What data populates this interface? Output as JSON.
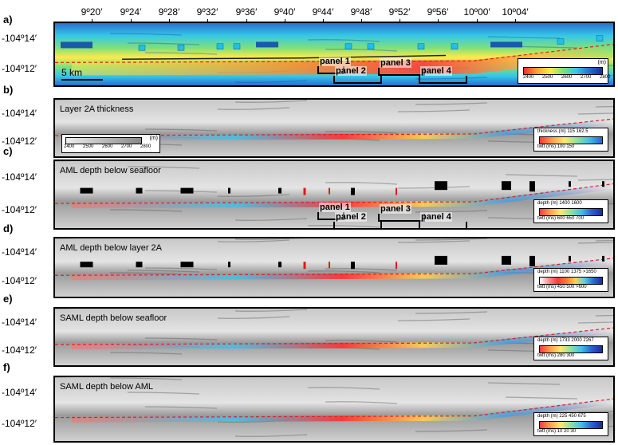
{
  "longitudes": [
    "9º20′",
    "9º24′",
    "9º28′",
    "9º32′",
    "9º36′",
    "9º40′",
    "9º44′",
    "9º48′",
    "9º52′",
    "9º56′",
    "10º00′",
    "10º04′"
  ],
  "latitudes": [
    "-104º14′",
    "-104º12′"
  ],
  "panels": [
    {
      "letter": "a)",
      "title": ""
    },
    {
      "letter": "b)",
      "title": "Layer 2A thickness"
    },
    {
      "letter": "c)",
      "title": "AML depth below seafloor"
    },
    {
      "letter": "d)",
      "title": "AML depth below layer 2A"
    },
    {
      "letter": "e)",
      "title": "SAML depth below seafloor"
    },
    {
      "letter": "f)",
      "title": "SAML depth below AML"
    }
  ],
  "scalebar": "5 km",
  "subpanels": [
    "panel 1",
    "panel 2",
    "panel 3",
    "panel 4"
  ],
  "colorbars": {
    "a": {
      "unit": "(m)",
      "ticks": [
        "2400",
        "2500",
        "2600",
        "2700",
        "2800"
      ]
    },
    "b_depth": {
      "unit": "(m)",
      "ticks": [
        "2400",
        "2500",
        "2600",
        "2700",
        "2800"
      ]
    },
    "b": {
      "top_label": "thickness (m)",
      "top_ticks": [
        "115",
        "162.5"
      ],
      "bottom_label": "twtt (ms)",
      "bottom_ticks": [
        "100",
        "150"
      ]
    },
    "c": {
      "top_label": "depth (m)",
      "top_ticks": [
        "1400",
        "1600"
      ],
      "bottom_label": "twtt (ms)",
      "bottom_ticks": [
        "600",
        "650",
        "700"
      ]
    },
    "d": {
      "top_label": "depth (m)",
      "top_ticks": [
        "1100",
        "1375",
        ">1650"
      ],
      "bottom_label": "twtt (ms)",
      "bottom_ticks": [
        "450",
        "500",
        ">600"
      ]
    },
    "e": {
      "top_label": "depth (m)",
      "top_ticks": [
        "1733",
        "2000",
        "2267"
      ],
      "bottom_label": "twtt (ms)",
      "bottom_ticks": [
        "280",
        "300"
      ]
    },
    "f": {
      "top_label": "depth (m)",
      "top_ticks": [
        "225",
        "450",
        "675"
      ],
      "bottom_label": "twtt (ms)",
      "bottom_ticks": [
        "10",
        "20",
        "30"
      ]
    }
  },
  "colors": {
    "axis_trace": "#e02020",
    "bathy_low": "#ff2020",
    "bathy_high": "#1a2a9c",
    "marker_black": "#000000",
    "marker_red": "#e01818",
    "marker_cyan": "#20c0e8",
    "marker_blue": "#1a5aa8"
  },
  "chart_data": {
    "type": "heatmap",
    "description_units": "longitude (degrees-minutes) vs latitude",
    "x_ticks": [
      "9º20′",
      "9º24′",
      "9º28′",
      "9º32′",
      "9º36′",
      "9º40′",
      "9º44′",
      "9º48′",
      "9º52′",
      "9º56′",
      "10º00′",
      "10º04′"
    ],
    "y_ticks": [
      "-104º14′",
      "-104º12′"
    ],
    "series": [
      {
        "name": "Layer 2A thickness"
      },
      {
        "name": "AML depth below seafloor"
      },
      {
        "name": "AML depth below layer 2A"
      },
      {
        "name": "SAML depth below seafloor"
      },
      {
        "name": "SAML depth below AML"
      }
    ]
  }
}
